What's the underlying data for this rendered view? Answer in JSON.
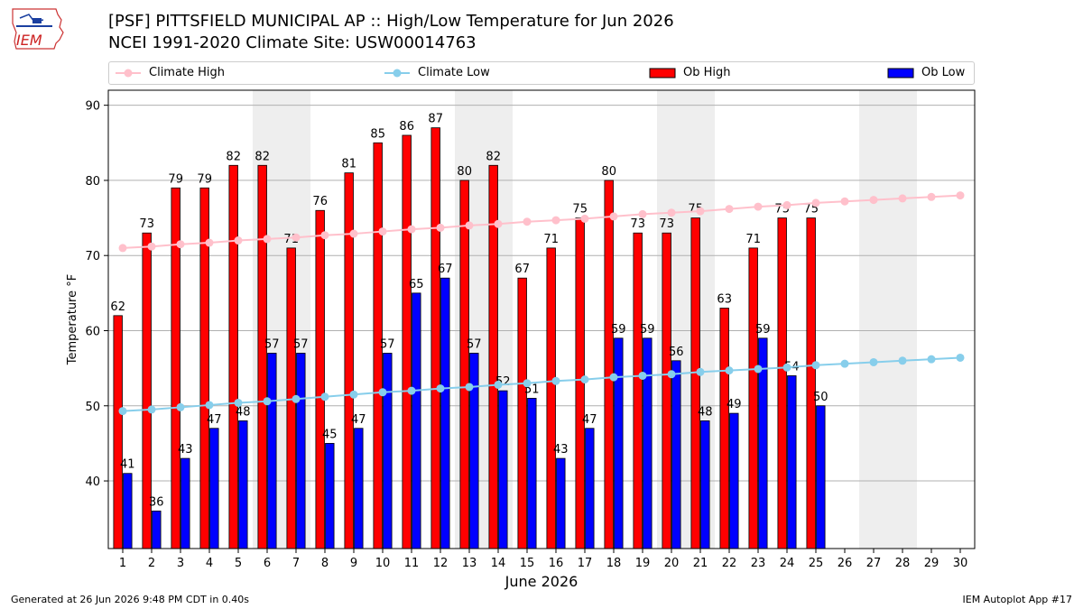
{
  "header": {
    "logo_text": "IEM",
    "title_line1": "[PSF] PITTSFIELD MUNICIPAL AP :: High/Low Temperature for Jun 2026",
    "title_line2": "NCEI 1991-2020 Climate Site: USW00014763"
  },
  "legend": {
    "climate_high": "Climate High",
    "climate_low": "Climate Low",
    "ob_high": "Ob High",
    "ob_low": "Ob Low"
  },
  "footer": {
    "generated": "Generated at 26 Jun 2026 9:48 PM CDT in 0.40s",
    "app": "IEM Autoplot App #17"
  },
  "colors": {
    "ob_high": "#ff0000",
    "ob_low": "#0000ff",
    "climate_high": "#ffc0cb",
    "climate_low": "#87ceeb",
    "weekend_shade": "#eeeeee",
    "grid": "#b0b0b0"
  },
  "chart_data": {
    "type": "bar",
    "xlabel": "June 2026",
    "ylabel": "Temperature °F",
    "ylim": [
      31,
      92
    ],
    "yticks": [
      40,
      50,
      60,
      70,
      80,
      90
    ],
    "xlim": [
      0.5,
      30.5
    ],
    "days": [
      1,
      2,
      3,
      4,
      5,
      6,
      7,
      8,
      9,
      10,
      11,
      12,
      13,
      14,
      15,
      16,
      17,
      18,
      19,
      20,
      21,
      22,
      23,
      24,
      25,
      26,
      27,
      28,
      29,
      30
    ],
    "ob_high": [
      62,
      73,
      79,
      79,
      82,
      82,
      71,
      76,
      81,
      85,
      86,
      87,
      80,
      82,
      67,
      71,
      75,
      80,
      73,
      73,
      75,
      63,
      71,
      75,
      75
    ],
    "ob_low": [
      41,
      36,
      43,
      47,
      48,
      57,
      57,
      45,
      47,
      57,
      65,
      67,
      57,
      52,
      51,
      43,
      47,
      59,
      59,
      56,
      48,
      49,
      59,
      54,
      50
    ],
    "climate_high": [
      71.0,
      71.2,
      71.5,
      71.7,
      72.0,
      72.2,
      72.4,
      72.7,
      72.9,
      73.2,
      73.5,
      73.7,
      74.0,
      74.2,
      74.5,
      74.7,
      74.9,
      75.2,
      75.5,
      75.7,
      75.9,
      76.2,
      76.5,
      76.7,
      77.0,
      77.2,
      77.4,
      77.6,
      77.8,
      78.0
    ],
    "climate_low": [
      49.3,
      49.5,
      49.8,
      50.1,
      50.4,
      50.6,
      50.9,
      51.2,
      51.5,
      51.8,
      52.0,
      52.3,
      52.5,
      52.8,
      53.0,
      53.3,
      53.5,
      53.8,
      54.0,
      54.2,
      54.5,
      54.7,
      54.9,
      55.1,
      55.4,
      55.6,
      55.8,
      56.0,
      56.2,
      56.4
    ],
    "weekend_shading": [
      [
        6,
        7
      ],
      [
        13,
        14
      ],
      [
        20,
        21
      ],
      [
        27,
        28
      ]
    ],
    "grid": true,
    "legend_position": "top"
  }
}
